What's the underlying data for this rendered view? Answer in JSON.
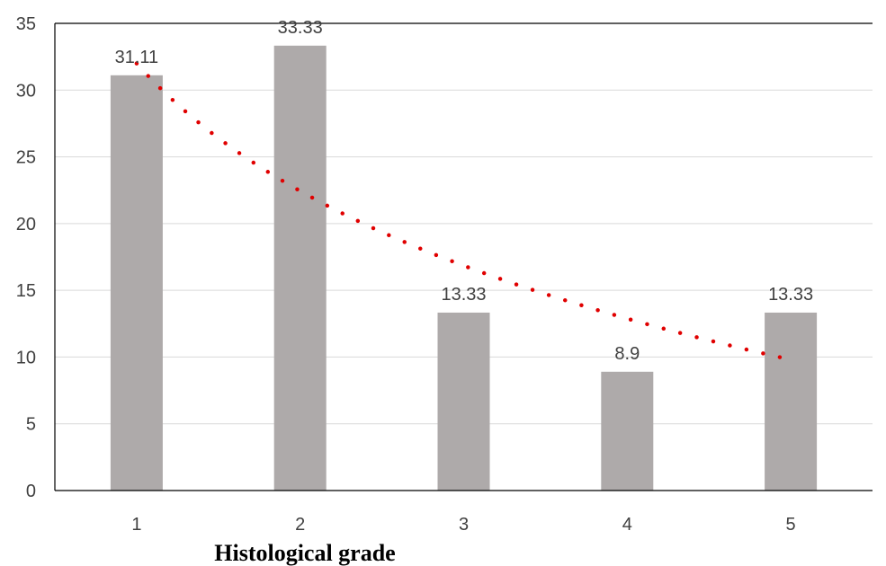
{
  "chart_data": {
    "type": "bar",
    "categories": [
      "1",
      "2",
      "3",
      "4",
      "5"
    ],
    "values": [
      31.11,
      33.33,
      13.33,
      8.9,
      13.33
    ],
    "data_labels": [
      "31.11",
      "33.33",
      "13.33",
      "8.9",
      "13.33"
    ],
    "xlabel": "Histological grade",
    "ylabel": "",
    "ylim": [
      0,
      35
    ],
    "yticks": [
      0,
      5,
      10,
      15,
      20,
      25,
      30,
      35
    ],
    "grid": true,
    "trendline": {
      "type": "logarithmic",
      "style": "dotted",
      "color": "#e00000",
      "start_value": 32.0,
      "end_value": 9.8
    },
    "colors": {
      "bar": "#aeaaaa",
      "grid": "#d9d9d9",
      "axis": "#000000"
    }
  }
}
